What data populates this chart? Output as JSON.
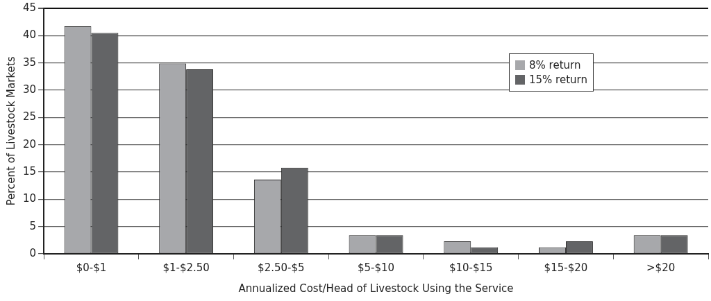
{
  "chart_data": {
    "type": "bar",
    "xlabel": "Annualized Cost/Head of Livestock Using the Service",
    "ylabel": "Percent of Livestock Markets",
    "categories": [
      "$0-$1",
      "$1-$2.50",
      "$2.50-$5",
      "$5-$10",
      "$10-$15",
      "$15-$20",
      ">$20"
    ],
    "series": [
      {
        "name": "8% return",
        "color": "#a7a8ab",
        "values": [
          41.7,
          34.9,
          13.6,
          3.4,
          2.3,
          1.2,
          3.4
        ]
      },
      {
        "name": "15% return",
        "color": "#636466",
        "values": [
          40.5,
          33.8,
          15.8,
          3.4,
          1.2,
          2.3,
          3.4
        ]
      }
    ],
    "ylim": [
      0,
      45
    ],
    "yticks": [
      0,
      5,
      10,
      15,
      20,
      25,
      30,
      35,
      40,
      45
    ],
    "grid": "y",
    "legend": "right"
  }
}
